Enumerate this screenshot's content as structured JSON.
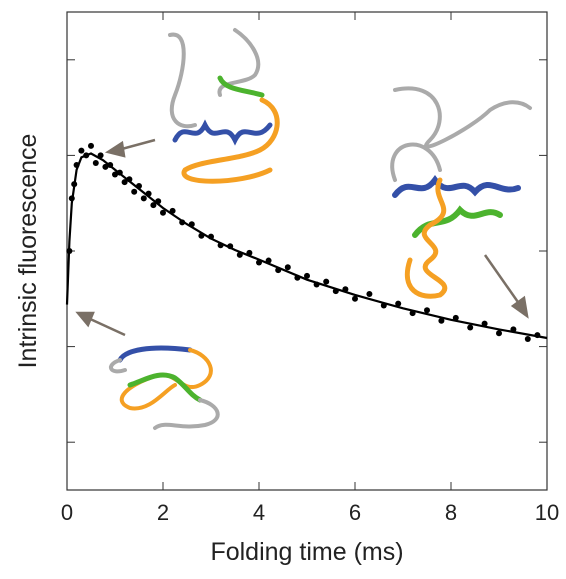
{
  "chart_data": {
    "type": "scatter",
    "x_label": "Folding time (ms)",
    "y_label": "Intrinsic fluorescence",
    "xlim": [
      0,
      10
    ],
    "xticks": [
      0,
      2,
      4,
      6,
      8,
      10
    ],
    "ylim": [
      0,
      5
    ],
    "yticks": [
      0.5,
      1.5,
      2.5,
      3.5,
      4.5
    ],
    "series": [
      {
        "type": "scatter",
        "color": "#000000",
        "x": [
          0.05,
          0.1,
          0.15,
          0.2,
          0.3,
          0.4,
          0.5,
          0.6,
          0.7,
          0.8,
          0.9,
          1.0,
          1.1,
          1.2,
          1.3,
          1.4,
          1.5,
          1.6,
          1.7,
          1.8,
          1.9,
          2.0,
          2.2,
          2.4,
          2.6,
          2.8,
          3.0,
          3.2,
          3.4,
          3.6,
          3.8,
          4.0,
          4.2,
          4.4,
          4.6,
          4.8,
          5.0,
          5.2,
          5.4,
          5.6,
          5.8,
          6.0,
          6.3,
          6.6,
          6.9,
          7.2,
          7.5,
          7.8,
          8.1,
          8.4,
          8.7,
          9.0,
          9.3,
          9.6,
          9.8
        ],
        "values": [
          2.5,
          3.05,
          3.2,
          3.4,
          3.55,
          3.5,
          3.6,
          3.42,
          3.5,
          3.38,
          3.4,
          3.3,
          3.32,
          3.22,
          3.25,
          3.12,
          3.18,
          3.05,
          3.1,
          2.98,
          3.02,
          2.9,
          2.92,
          2.8,
          2.78,
          2.66,
          2.65,
          2.56,
          2.55,
          2.46,
          2.48,
          2.38,
          2.4,
          2.3,
          2.33,
          2.22,
          2.24,
          2.15,
          2.18,
          2.08,
          2.1,
          2.0,
          2.05,
          1.93,
          1.95,
          1.85,
          1.88,
          1.77,
          1.8,
          1.7,
          1.74,
          1.64,
          1.68,
          1.58,
          1.62
        ]
      },
      {
        "type": "line",
        "color": "#000000",
        "x": [
          0,
          0.05,
          0.1,
          0.2,
          0.3,
          0.5,
          0.75,
          1,
          1.5,
          2,
          2.5,
          3,
          3.5,
          4,
          5,
          6,
          7,
          8,
          9,
          10
        ],
        "values": [
          1.94,
          2.6,
          3.0,
          3.35,
          3.48,
          3.52,
          3.45,
          3.35,
          3.15,
          2.95,
          2.78,
          2.63,
          2.51,
          2.41,
          2.2,
          2.04,
          1.9,
          1.78,
          1.68,
          1.59
        ]
      }
    ]
  }
}
